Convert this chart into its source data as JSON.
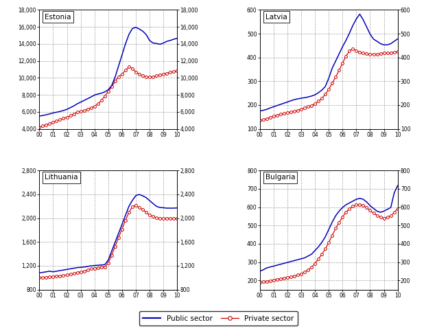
{
  "countries": [
    "Estonia",
    "Latvia",
    "Lithuania",
    "Bulgaria"
  ],
  "xtick_labels": [
    "00",
    "01",
    "02",
    "03",
    "04",
    "05",
    "06",
    "07",
    "08",
    "09",
    "10"
  ],
  "xtick_positions": [
    0,
    4,
    8,
    12,
    16,
    20,
    24,
    28,
    32,
    36,
    40
  ],
  "ylims": {
    "Estonia": [
      4000,
      18000
    ],
    "Latvia": [
      100,
      600
    ],
    "Lithuania": [
      800,
      2800
    ],
    "Bulgaria": [
      150,
      800
    ]
  },
  "yticks": {
    "Estonia": [
      4000,
      6000,
      8000,
      10000,
      12000,
      14000,
      16000,
      18000
    ],
    "Latvia": [
      100,
      200,
      300,
      400,
      500,
      600
    ],
    "Lithuania": [
      800,
      1200,
      1600,
      2000,
      2400,
      2800
    ],
    "Bulgaria": [
      200,
      300,
      400,
      500,
      600,
      700,
      800
    ]
  },
  "public_color": "#0000bb",
  "private_color": "#cc0000",
  "legend_labels": [
    "Public sector",
    "Private sector"
  ],
  "Estonia_public": [
    5500,
    5580,
    5660,
    5760,
    5880,
    5960,
    6050,
    6160,
    6300,
    6500,
    6700,
    6950,
    7150,
    7350,
    7550,
    7750,
    7980,
    8100,
    8200,
    8350,
    8600,
    9100,
    10100,
    11400,
    12700,
    14000,
    15100,
    15800,
    15950,
    15750,
    15500,
    15100,
    14400,
    14100,
    14050,
    13950,
    14100,
    14300,
    14400,
    14550,
    14650
  ],
  "Estonia_private": [
    4200,
    4340,
    4480,
    4630,
    4780,
    4930,
    5080,
    5230,
    5380,
    5550,
    5750,
    5960,
    6060,
    6160,
    6310,
    6460,
    6660,
    6950,
    7350,
    7850,
    8400,
    8950,
    9600,
    10150,
    10450,
    10900,
    11300,
    11100,
    10700,
    10450,
    10250,
    10150,
    10080,
    10150,
    10250,
    10350,
    10450,
    10550,
    10650,
    10750,
    10850
  ],
  "Latvia_public": [
    175,
    178,
    182,
    188,
    193,
    198,
    203,
    208,
    213,
    218,
    223,
    226,
    229,
    231,
    234,
    238,
    243,
    252,
    263,
    278,
    313,
    355,
    385,
    415,
    445,
    472,
    502,
    535,
    562,
    582,
    558,
    528,
    498,
    477,
    468,
    458,
    453,
    453,
    458,
    468,
    478
  ],
  "Latvia_private": [
    135,
    139,
    143,
    148,
    153,
    158,
    161,
    164,
    168,
    171,
    174,
    178,
    183,
    188,
    193,
    198,
    206,
    216,
    228,
    246,
    266,
    292,
    318,
    346,
    376,
    406,
    427,
    438,
    428,
    422,
    418,
    415,
    413,
    413,
    413,
    416,
    418,
    418,
    420,
    422,
    424
  ],
  "Lithuania_public": [
    1080,
    1088,
    1098,
    1108,
    1098,
    1108,
    1118,
    1128,
    1138,
    1148,
    1158,
    1168,
    1173,
    1178,
    1188,
    1198,
    1203,
    1208,
    1213,
    1218,
    1295,
    1445,
    1595,
    1745,
    1895,
    2048,
    2198,
    2298,
    2378,
    2398,
    2375,
    2345,
    2295,
    2245,
    2198,
    2178,
    2175,
    2168,
    2168,
    2168,
    2172
  ],
  "Lithuania_private": [
    1000,
    1000,
    1008,
    1018,
    1018,
    1028,
    1028,
    1038,
    1048,
    1058,
    1068,
    1088,
    1098,
    1108,
    1128,
    1148,
    1158,
    1168,
    1173,
    1178,
    1248,
    1375,
    1525,
    1675,
    1815,
    1965,
    2095,
    2195,
    2215,
    2175,
    2145,
    2095,
    2055,
    2025,
    2005,
    1995,
    1995,
    1995,
    1995,
    1995,
    1995
  ],
  "Bulgaria_public": [
    250,
    258,
    268,
    273,
    278,
    283,
    288,
    293,
    298,
    303,
    308,
    313,
    318,
    323,
    333,
    343,
    363,
    383,
    408,
    438,
    478,
    518,
    553,
    578,
    598,
    613,
    623,
    633,
    643,
    648,
    643,
    628,
    608,
    593,
    578,
    572,
    578,
    588,
    598,
    678,
    718
  ],
  "Bulgaria_private": [
    190,
    192,
    195,
    198,
    202,
    206,
    209,
    212,
    216,
    219,
    224,
    229,
    236,
    246,
    258,
    272,
    292,
    318,
    342,
    372,
    406,
    446,
    484,
    516,
    546,
    572,
    592,
    605,
    612,
    615,
    609,
    597,
    582,
    567,
    555,
    545,
    540,
    545,
    552,
    572,
    592
  ]
}
